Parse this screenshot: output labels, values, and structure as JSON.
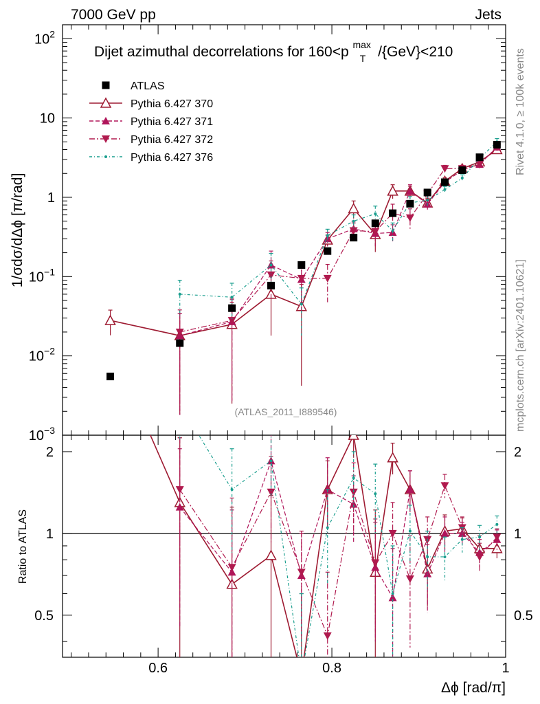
{
  "header": {
    "left": "7000 GeV pp",
    "right": "Jets",
    "side_top": "Rivet 4.1.0, ≥ 100k events",
    "side_bottom": "mcplots.cern.ch [arXiv:2401.10621]",
    "analysis": "(ATLAS_2011_I889546)"
  },
  "chart_data": {
    "type": "scatter",
    "title": "Dijet azimuthal decorrelations for 160<p_T^max/{GeV}<210",
    "title_main": "Dijet azimuthal decorrelations for 160<p",
    "title_sup": "max",
    "title_sub": "T",
    "title_tail": "/{GeV}<210",
    "xlabel": "Δϕ [rad/π]",
    "ylabel": "1/σdσ/dΔϕ [π/rad]",
    "ratio_ylabel": "Ratio to ATLAS",
    "xlim": [
      0.49,
      1.0
    ],
    "ylim": [
      0.001,
      150
    ],
    "ratio_ylim": [
      0.35,
      2.3
    ],
    "x_ticks": [
      0.6,
      0.8,
      1
    ],
    "x_tick_labels": [
      "0.6",
      "0.8",
      "1"
    ],
    "y_ticks": [
      0.001,
      0.01,
      0.1,
      1,
      10,
      100
    ],
    "y_tick_labels": [
      {
        "base": "10",
        "exp": "−3"
      },
      {
        "base": "10",
        "exp": "−2"
      },
      {
        "base": "10",
        "exp": "−1"
      },
      {
        "base": "1",
        "exp": ""
      },
      {
        "base": "10",
        "exp": ""
      },
      {
        "base": "10",
        "exp": "2"
      }
    ],
    "ratio_ticks": [
      0.5,
      1,
      2
    ],
    "ratio_tick_labels": [
      "0.5",
      "1",
      "2"
    ],
    "legend": [
      "ATLAS",
      "Pythia 6.427 370",
      "Pythia 6.427 371",
      "Pythia 6.427 372",
      "Pythia 6.427 376"
    ],
    "data": {
      "name": "ATLAS",
      "x": [
        0.545,
        0.625,
        0.685,
        0.73,
        0.765,
        0.795,
        0.825,
        0.85,
        0.87,
        0.89,
        0.91,
        0.93,
        0.95,
        0.97,
        0.99
      ],
      "y": [
        0.0055,
        0.0145,
        0.04,
        0.077,
        0.14,
        0.21,
        0.31,
        0.47,
        0.63,
        0.83,
        1.15,
        1.55,
        2.2,
        3.2,
        4.6
      ]
    },
    "series": [
      {
        "name": "Pythia 6.427 370",
        "color": "#9e1b32",
        "dash": "",
        "marker": "triangle-up-open",
        "x": [
          0.545,
          0.625,
          0.685,
          0.73,
          0.765,
          0.795,
          0.825,
          0.85,
          0.87,
          0.89,
          0.91,
          0.93,
          0.95,
          0.97,
          0.99
        ],
        "y": [
          0.028,
          0.018,
          0.025,
          0.06,
          0.042,
          0.29,
          0.72,
          0.34,
          1.2,
          1.2,
          0.85,
          1.6,
          2.3,
          2.8,
          4.0
        ],
        "err": [
          0.35,
          0.9,
          0.9,
          0.7,
          0.9,
          0.15,
          0.25,
          0.4,
          0.2,
          0.15,
          0.15,
          0.1,
          0.1,
          0.1,
          0.1
        ],
        "ratio": [
          5.0,
          1.3,
          0.65,
          0.83,
          0.3,
          1.45,
          2.3,
          0.72,
          1.9,
          1.45,
          0.74,
          1.02,
          1.04,
          0.88,
          0.88
        ],
        "ratio_err": [
          0.0,
          0.95,
          0.6,
          0.55,
          0.3,
          0.4,
          0.4,
          0.5,
          0.25,
          0.25,
          0.2,
          0.15,
          0.1,
          0.1,
          0.07
        ]
      },
      {
        "name": "Pythia 6.427 371",
        "color": "#b0155a",
        "dash": "6,3",
        "marker": "triangle-up",
        "x": [
          0.625,
          0.685,
          0.73,
          0.765,
          0.795,
          0.825,
          0.85,
          0.87,
          0.89,
          0.91,
          0.93,
          0.95,
          0.97,
          0.99
        ],
        "y": [
          0.018,
          0.027,
          0.14,
          0.092,
          0.3,
          0.4,
          0.35,
          0.36,
          1.2,
          0.82,
          1.55,
          2.2,
          2.6,
          4.3
        ],
        "err": [
          0.9,
          0.9,
          0.5,
          0.6,
          0.2,
          0.25,
          0.3,
          0.25,
          0.2,
          0.15,
          0.1,
          0.1,
          0.1,
          0.1
        ],
        "ratio": [
          1.25,
          0.72,
          1.85,
          0.7,
          1.45,
          1.28,
          0.75,
          0.58,
          1.45,
          0.71,
          1.0,
          1.0,
          0.85,
          0.95
        ],
        "ratio_err": [
          0.8,
          0.5,
          0.5,
          0.3,
          0.45,
          0.35,
          0.35,
          0.3,
          0.25,
          0.2,
          0.15,
          0.1,
          0.1,
          0.08
        ]
      },
      {
        "name": "Pythia 6.427 372",
        "color": "#b01a4e",
        "dash": "8,3,2,3",
        "marker": "triangle-down",
        "x": [
          0.625,
          0.685,
          0.73,
          0.765,
          0.795,
          0.825,
          0.85,
          0.87,
          0.89,
          0.91,
          0.93,
          0.95,
          0.97,
          0.99
        ],
        "y": [
          0.02,
          0.028,
          0.105,
          0.095,
          0.095,
          0.38,
          0.37,
          0.63,
          0.55,
          1.1,
          2.3,
          2.3,
          2.6,
          4.3
        ],
        "err": [
          0.9,
          0.9,
          0.5,
          0.6,
          0.5,
          0.25,
          0.35,
          0.3,
          0.3,
          0.15,
          0.1,
          0.1,
          0.1,
          0.08
        ],
        "ratio": [
          1.45,
          0.75,
          1.42,
          0.72,
          0.42,
          1.42,
          0.78,
          1.0,
          0.68,
          0.95,
          1.5,
          1.05,
          0.82,
          0.97
        ],
        "ratio_err": [
          0.8,
          0.6,
          0.5,
          0.3,
          0.3,
          0.4,
          0.35,
          0.3,
          0.3,
          0.2,
          0.15,
          0.1,
          0.1,
          0.07
        ]
      },
      {
        "name": "Pythia 6.427 376",
        "color": "#1a9e8e",
        "dash": "4,3,1,3",
        "marker": "dot",
        "x": [
          0.625,
          0.685,
          0.73,
          0.765,
          0.795,
          0.825,
          0.85,
          0.87,
          0.89,
          0.91,
          0.93,
          0.95,
          0.97,
          0.99
        ],
        "y": [
          0.06,
          0.055,
          0.14,
          0.045,
          0.33,
          0.5,
          0.62,
          0.38,
          0.85,
          0.92,
          1.25,
          1.75,
          3.1,
          5.0
        ],
        "err": [
          0.5,
          0.5,
          0.4,
          0.6,
          0.2,
          0.2,
          0.25,
          0.25,
          0.2,
          0.15,
          0.1,
          0.1,
          0.1,
          0.1
        ],
        "ratio": [
          3.0,
          1.45,
          1.85,
          0.3,
          1.05,
          1.6,
          1.4,
          0.6,
          1.02,
          0.82,
          0.82,
          0.95,
          0.97,
          1.08
        ],
        "ratio_err": [
          0.8,
          0.6,
          0.5,
          0.3,
          0.4,
          0.4,
          0.4,
          0.3,
          0.25,
          0.2,
          0.15,
          0.1,
          0.1,
          0.08
        ]
      }
    ]
  }
}
